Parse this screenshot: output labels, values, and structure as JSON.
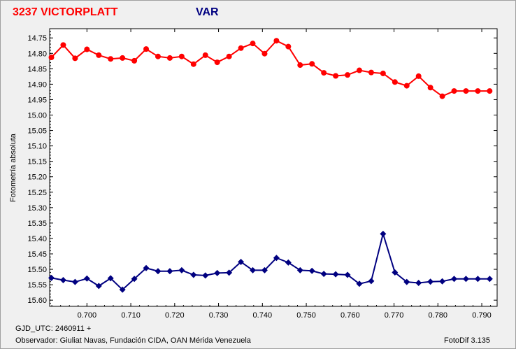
{
  "header": {
    "title_left": "3237 VICTORPLATT",
    "title_right": "VAR"
  },
  "footer": {
    "gjd": "GJD_UTC: 2460911 +",
    "observer": "Observador: Giuliat Navas, Fundación CIDA, OAN Mérida Venezuela",
    "software": "FotoDif 3.135"
  },
  "chart_data": {
    "type": "line",
    "title": "",
    "xlabel": "",
    "ylabel": "Fotometría absoluta",
    "xlim": [
      0.6915,
      0.7935
    ],
    "ylim": [
      15.62,
      14.72
    ],
    "y_inverted": true,
    "grid": false,
    "x_ticks": [
      "0.700",
      "0.710",
      "0.720",
      "0.730",
      "0.740",
      "0.750",
      "0.760",
      "0.770",
      "0.780",
      "0.790"
    ],
    "x_tick_values": [
      0.7,
      0.71,
      0.72,
      0.73,
      0.74,
      0.75,
      0.76,
      0.77,
      0.78,
      0.79
    ],
    "y_ticks": [
      "14.75",
      "14.80",
      "14.85",
      "14.90",
      "14.95",
      "15.00",
      "15.05",
      "15.10",
      "15.15",
      "15.20",
      "15.25",
      "15.30",
      "15.35",
      "15.40",
      "15.45",
      "15.50",
      "15.55",
      "15.60"
    ],
    "y_tick_values": [
      14.75,
      14.8,
      14.85,
      14.9,
      14.95,
      15.0,
      15.05,
      15.1,
      15.15,
      15.2,
      15.25,
      15.3,
      15.35,
      15.4,
      15.45,
      15.5,
      15.55,
      15.6
    ],
    "x": [
      0.6919,
      0.6946,
      0.6973,
      0.7,
      0.7027,
      0.7054,
      0.7081,
      0.7108,
      0.7135,
      0.7162,
      0.7189,
      0.7216,
      0.7243,
      0.727,
      0.7297,
      0.7324,
      0.7351,
      0.7378,
      0.7405,
      0.7432,
      0.7459,
      0.7486,
      0.7513,
      0.754,
      0.7567,
      0.7594,
      0.7621,
      0.7648,
      0.7675,
      0.7702,
      0.7729,
      0.7756,
      0.7783,
      0.781,
      0.7837,
      0.7864,
      0.7891,
      0.7918
    ],
    "series": [
      {
        "name": "",
        "color": "#ff0000",
        "marker": "circle",
        "values": [
          14.813,
          14.773,
          14.816,
          14.787,
          14.806,
          14.818,
          14.815,
          14.824,
          14.786,
          14.81,
          14.815,
          14.81,
          14.835,
          14.806,
          14.829,
          14.81,
          14.783,
          14.768,
          14.801,
          14.759,
          14.778,
          14.838,
          14.834,
          14.863,
          14.873,
          14.87,
          14.855,
          14.862,
          14.865,
          14.893,
          14.905,
          14.874,
          14.911,
          14.939,
          14.922,
          14.922,
          14.922,
          14.922
        ]
      },
      {
        "name": "",
        "color": "#000080",
        "marker": "diamond",
        "values": [
          15.528,
          15.535,
          15.541,
          15.53,
          15.554,
          15.529,
          15.566,
          15.531,
          15.496,
          15.506,
          15.506,
          15.503,
          15.518,
          15.52,
          15.512,
          15.511,
          15.476,
          15.503,
          15.503,
          15.463,
          15.478,
          15.503,
          15.505,
          15.515,
          15.516,
          15.518,
          15.547,
          15.538,
          15.385,
          15.51,
          15.541,
          15.544,
          15.54,
          15.539,
          15.531,
          15.531,
          15.531,
          15.531
        ]
      }
    ]
  }
}
